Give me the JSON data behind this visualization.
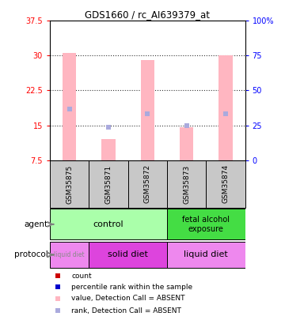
{
  "title": "GDS1660 / rc_AI639379_at",
  "samples": [
    "GSM35875",
    "GSM35871",
    "GSM35872",
    "GSM35873",
    "GSM35874"
  ],
  "bar_tops": [
    30.5,
    12.0,
    29.0,
    14.5,
    30.0
  ],
  "bar_bottom": 7.5,
  "rank_values": [
    18.5,
    14.5,
    17.5,
    15.0,
    17.5
  ],
  "ylim_left": [
    7.5,
    37.5
  ],
  "ylim_right": [
    0,
    100
  ],
  "yticks_left": [
    7.5,
    15.0,
    22.5,
    30.0,
    37.5
  ],
  "yticks_right": [
    0,
    25,
    50,
    75,
    100
  ],
  "ytick_labels_left": [
    "7.5",
    "15",
    "22.5",
    "30",
    "37.5"
  ],
  "ytick_labels_right": [
    "0",
    "25",
    "50",
    "75",
    "100%"
  ],
  "bar_color_absent": "#FFB6C1",
  "rank_color_absent": "#AAAADD",
  "bar_width": 0.35,
  "sample_box_color": "#C8C8C8",
  "agent_control_color": "#AAFFAA",
  "agent_fetal_color": "#44DD44",
  "protocol_liquid1_color": "#EE88EE",
  "protocol_solid_color": "#DD44DD",
  "protocol_liquid2_color": "#EE88EE",
  "legend_items": [
    {
      "color": "#CC0000",
      "label": "count"
    },
    {
      "color": "#0000CC",
      "label": "percentile rank within the sample"
    },
    {
      "color": "#FFB6C1",
      "label": "value, Detection Call = ABSENT"
    },
    {
      "color": "#AAAADD",
      "label": "rank, Detection Call = ABSENT"
    }
  ],
  "grid_yticks": [
    15.0,
    22.5,
    30.0
  ],
  "figsize": [
    3.6,
    4.05
  ],
  "dpi": 100
}
